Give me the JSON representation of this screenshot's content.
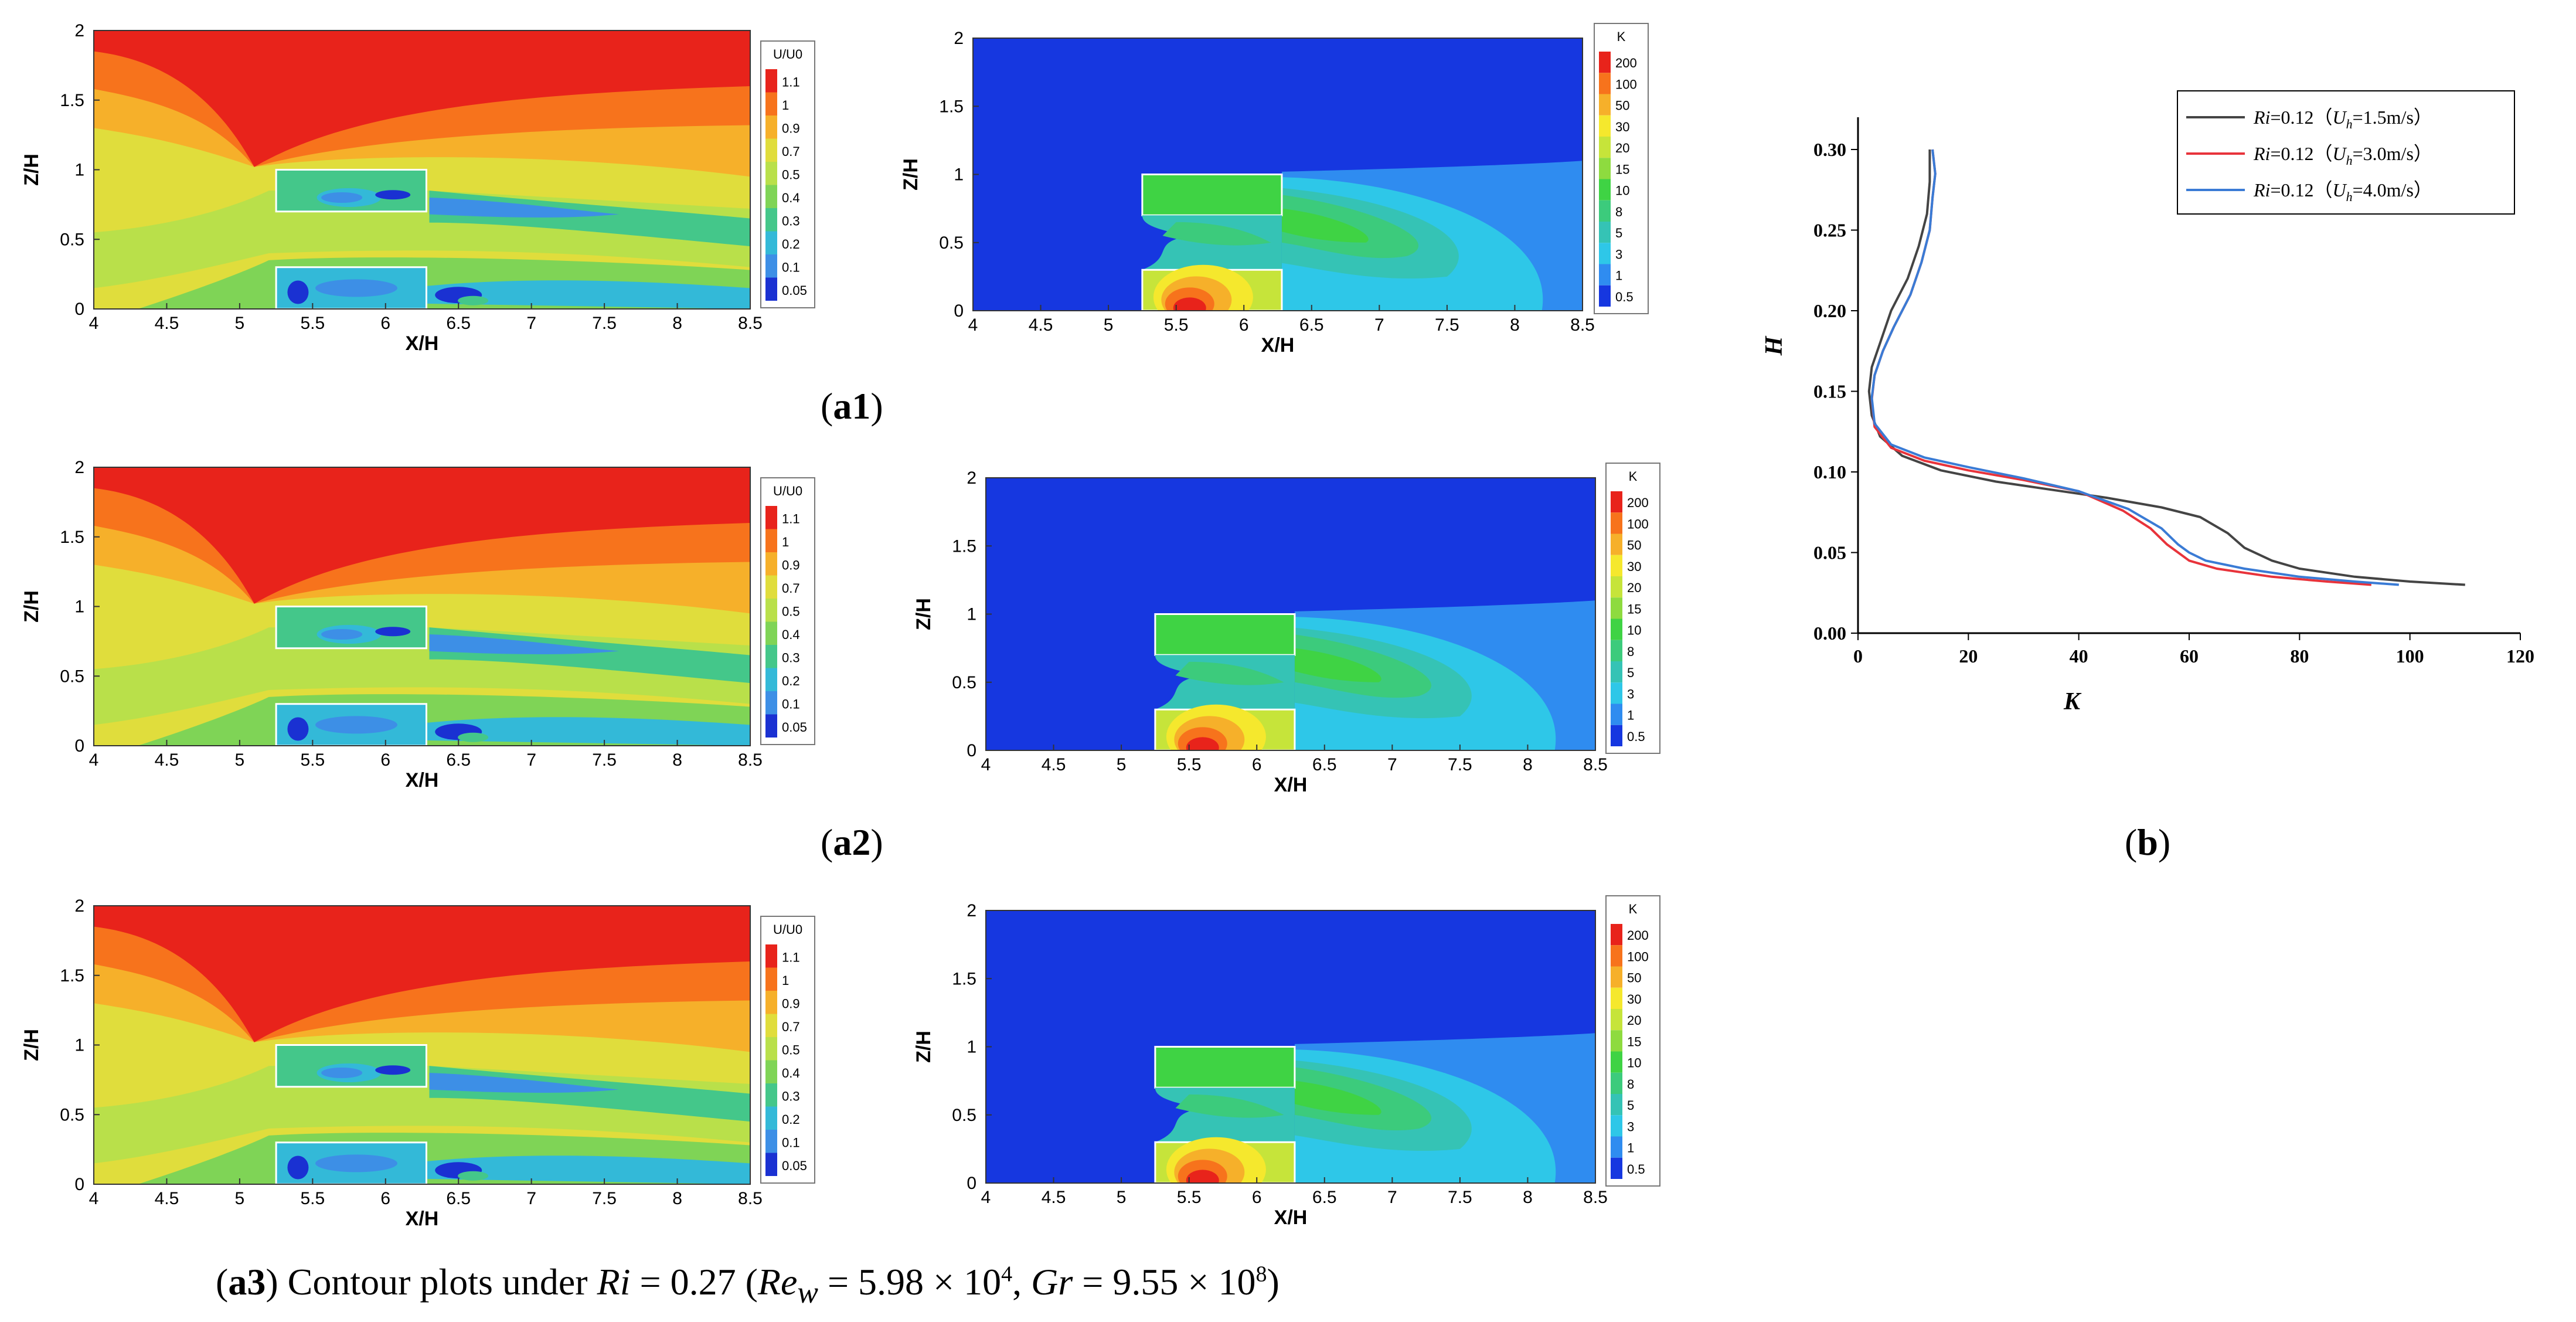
{
  "captions": {
    "a1": {
      "open": "(",
      "label": "a1",
      "close": ")"
    },
    "a2": {
      "open": "(",
      "label": "a2",
      "close": ")"
    },
    "a3": {
      "open": "(",
      "label": "a3",
      "t1": ") Contour plots under ",
      "ri": "Ri",
      "t2": " = 0.27 (",
      "re": "Re",
      "rew": "w",
      "t3": " = 5.98 × 10",
      "e1": "4",
      "t4": ", ",
      "gr": "Gr",
      "t5": " = 9.55 × 10",
      "e2": "8",
      "t6": ")"
    },
    "b": {
      "open": "(",
      "label": "b",
      "close": ")"
    }
  },
  "chart_data": [
    {
      "id": "a1-velocity",
      "type": "contour",
      "field": "U/U0",
      "xlabel": "X/H",
      "ylabel": "Z/H",
      "xticks": [
        "4",
        "4.5",
        "5",
        "5.5",
        "6",
        "6.5",
        "7",
        "7.5",
        "8",
        "8.5"
      ],
      "xlim": [
        4,
        8.5
      ],
      "yticks": [
        "0",
        "0.5",
        "1",
        "1.5",
        "2"
      ],
      "ylim": [
        0,
        2
      ],
      "legend_title": "U/U0",
      "levels": [
        "1.1",
        "1",
        "0.9",
        "0.7",
        "0.5",
        "0.4",
        "0.3",
        "0.2",
        "0.1",
        "0.05"
      ],
      "level_colors": [
        "#e8231b",
        "#f7731c",
        "#f6b02a",
        "#e0dd3c",
        "#b9e04a",
        "#7fd456",
        "#44c78a",
        "#33b9d8",
        "#3d8fe6",
        "#1a31d2"
      ]
    },
    {
      "id": "a1-temperature",
      "type": "contour",
      "field": "K",
      "xlabel": "X/H",
      "ylabel": "Z/H",
      "xticks": [
        "4",
        "4.5",
        "5",
        "5.5",
        "6",
        "6.5",
        "7",
        "7.5",
        "8",
        "8.5"
      ],
      "xlim": [
        4,
        8.5
      ],
      "yticks": [
        "0",
        "0.5",
        "1",
        "1.5",
        "2"
      ],
      "ylim": [
        0,
        2
      ],
      "legend_title": "K",
      "levels": [
        "200",
        "100",
        "50",
        "30",
        "20",
        "15",
        "10",
        "8",
        "5",
        "3",
        "1",
        "0.5"
      ],
      "level_colors": [
        "#e8231b",
        "#f7731c",
        "#f6b02a",
        "#f5e82d",
        "#c6e43a",
        "#8edb3f",
        "#3fd344",
        "#3ccb7c",
        "#35c3b5",
        "#2ec7e8",
        "#2f8cf0",
        "#1637e0"
      ]
    },
    {
      "id": "a2-velocity",
      "type": "contour",
      "field": "U/U0",
      "xlabel": "X/H",
      "ylabel": "Z/H",
      "xticks": [
        "4",
        "4.5",
        "5",
        "5.5",
        "6",
        "6.5",
        "7",
        "7.5",
        "8",
        "8.5"
      ],
      "xlim": [
        4,
        8.5
      ],
      "yticks": [
        "0",
        "0.5",
        "1",
        "1.5",
        "2"
      ],
      "ylim": [
        0,
        2
      ],
      "legend_title": "U/U0",
      "levels": [
        "1.1",
        "1",
        "0.9",
        "0.7",
        "0.5",
        "0.4",
        "0.3",
        "0.2",
        "0.1",
        "0.05"
      ],
      "level_colors": [
        "#e8231b",
        "#f7731c",
        "#f6b02a",
        "#e0dd3c",
        "#b9e04a",
        "#7fd456",
        "#44c78a",
        "#33b9d8",
        "#3d8fe6",
        "#1a31d2"
      ]
    },
    {
      "id": "a2-temperature",
      "type": "contour",
      "field": "K",
      "xlabel": "X/H",
      "ylabel": "Z/H",
      "xticks": [
        "4",
        "4.5",
        "5",
        "5.5",
        "6",
        "6.5",
        "7",
        "7.5",
        "8",
        "8.5"
      ],
      "xlim": [
        4,
        8.5
      ],
      "yticks": [
        "0",
        "0.5",
        "1",
        "1.5",
        "2"
      ],
      "ylim": [
        0,
        2
      ],
      "legend_title": "K",
      "levels": [
        "200",
        "100",
        "50",
        "30",
        "20",
        "15",
        "10",
        "8",
        "5",
        "3",
        "1",
        "0.5"
      ],
      "level_colors": [
        "#e8231b",
        "#f7731c",
        "#f6b02a",
        "#f5e82d",
        "#c6e43a",
        "#8edb3f",
        "#3fd344",
        "#3ccb7c",
        "#35c3b5",
        "#2ec7e8",
        "#2f8cf0",
        "#1637e0"
      ]
    },
    {
      "id": "a3-velocity",
      "type": "contour",
      "field": "U/U0",
      "xlabel": "X/H",
      "ylabel": "Z/H",
      "xticks": [
        "4",
        "4.5",
        "5",
        "5.5",
        "6",
        "6.5",
        "7",
        "7.5",
        "8",
        "8.5"
      ],
      "xlim": [
        4,
        8.5
      ],
      "yticks": [
        "0",
        "0.5",
        "1",
        "1.5",
        "2"
      ],
      "ylim": [
        0,
        2
      ],
      "legend_title": "U/U0",
      "levels": [
        "1.1",
        "1",
        "0.9",
        "0.7",
        "0.5",
        "0.4",
        "0.3",
        "0.2",
        "0.1",
        "0.05"
      ],
      "level_colors": [
        "#e8231b",
        "#f7731c",
        "#f6b02a",
        "#e0dd3c",
        "#b9e04a",
        "#7fd456",
        "#44c78a",
        "#33b9d8",
        "#3d8fe6",
        "#1a31d2"
      ]
    },
    {
      "id": "a3-temperature",
      "type": "contour",
      "field": "K",
      "xlabel": "X/H",
      "ylabel": "Z/H",
      "xticks": [
        "4",
        "4.5",
        "5",
        "5.5",
        "6",
        "6.5",
        "7",
        "7.5",
        "8",
        "8.5"
      ],
      "xlim": [
        4,
        8.5
      ],
      "yticks": [
        "0",
        "0.5",
        "1",
        "1.5",
        "2"
      ],
      "ylim": [
        0,
        2
      ],
      "legend_title": "K",
      "levels": [
        "200",
        "100",
        "50",
        "30",
        "20",
        "15",
        "10",
        "8",
        "5",
        "3",
        "1",
        "0.5"
      ],
      "level_colors": [
        "#e8231b",
        "#f7731c",
        "#f6b02a",
        "#f5e82d",
        "#c6e43a",
        "#8edb3f",
        "#3fd344",
        "#3ccb7c",
        "#35c3b5",
        "#2ec7e8",
        "#2f8cf0",
        "#1637e0"
      ]
    },
    {
      "id": "b-profile",
      "type": "line",
      "xlabel": "K",
      "ylabel": "H",
      "xlim": [
        0,
        120
      ],
      "ylim": [
        0,
        0.32
      ],
      "xticks": [
        "0",
        "20",
        "40",
        "60",
        "80",
        "100",
        "120"
      ],
      "yticks": [
        "0.00",
        "0.05",
        "0.10",
        "0.15",
        "0.20",
        "0.25",
        "0.30"
      ],
      "series": [
        {
          "name": "Ri=0.12（Uh=1.5m/s）",
          "name_ri": "Ri",
          "name_val": "=0.12（",
          "name_u": "U",
          "name_sub": "h",
          "name_tail": "=1.5m/s）",
          "color": "#444444",
          "x": [
            110,
            100,
            90,
            80,
            75,
            70,
            67,
            62,
            55,
            45,
            35,
            25,
            15,
            8,
            4,
            2.5,
            2,
            2.5,
            4,
            6,
            9,
            11,
            12.5,
            13,
            13
          ],
          "y": [
            0.03,
            0.032,
            0.035,
            0.04,
            0.045,
            0.053,
            0.062,
            0.072,
            0.078,
            0.084,
            0.089,
            0.094,
            0.101,
            0.11,
            0.122,
            0.135,
            0.15,
            0.165,
            0.18,
            0.2,
            0.22,
            0.24,
            0.26,
            0.28,
            0.3
          ]
        },
        {
          "name": "Ri=0.12（Uh=3.0m/s）",
          "name_ri": "Ri",
          "name_val": "=0.12（",
          "name_u": "U",
          "name_sub": "h",
          "name_tail": "=3.0m/s）",
          "color": "#e8333b",
          "x": [
            93,
            85,
            75,
            65,
            60,
            58,
            56,
            53,
            48,
            40,
            30,
            20,
            12,
            6,
            3,
            2.5,
            3,
            4.5,
            6.5,
            9.5,
            11.5,
            13,
            13.5,
            14,
            13.5
          ],
          "y": [
            0.03,
            0.032,
            0.035,
            0.04,
            0.045,
            0.05,
            0.055,
            0.065,
            0.076,
            0.088,
            0.095,
            0.101,
            0.107,
            0.115,
            0.128,
            0.145,
            0.16,
            0.175,
            0.19,
            0.21,
            0.23,
            0.25,
            0.27,
            0.285,
            0.3
          ]
        },
        {
          "name": "Ri=0.12（Uh=4.0m/s）",
          "name_ri": "Ri",
          "name_val": "=0.12（",
          "name_u": "U",
          "name_sub": "h",
          "name_tail": "=4.0m/s）",
          "color": "#3a7bd5",
          "x": [
            98,
            90,
            80,
            70,
            63,
            60,
            58,
            55,
            49,
            40,
            30,
            20,
            12,
            6,
            3,
            2.5,
            3,
            4.5,
            6.5,
            9.5,
            11.5,
            13,
            13.5,
            14,
            13.5
          ],
          "y": [
            0.03,
            0.032,
            0.035,
            0.04,
            0.045,
            0.05,
            0.055,
            0.065,
            0.077,
            0.088,
            0.096,
            0.103,
            0.109,
            0.117,
            0.13,
            0.146,
            0.16,
            0.175,
            0.19,
            0.21,
            0.23,
            0.25,
            0.27,
            0.285,
            0.3
          ]
        }
      ]
    }
  ]
}
